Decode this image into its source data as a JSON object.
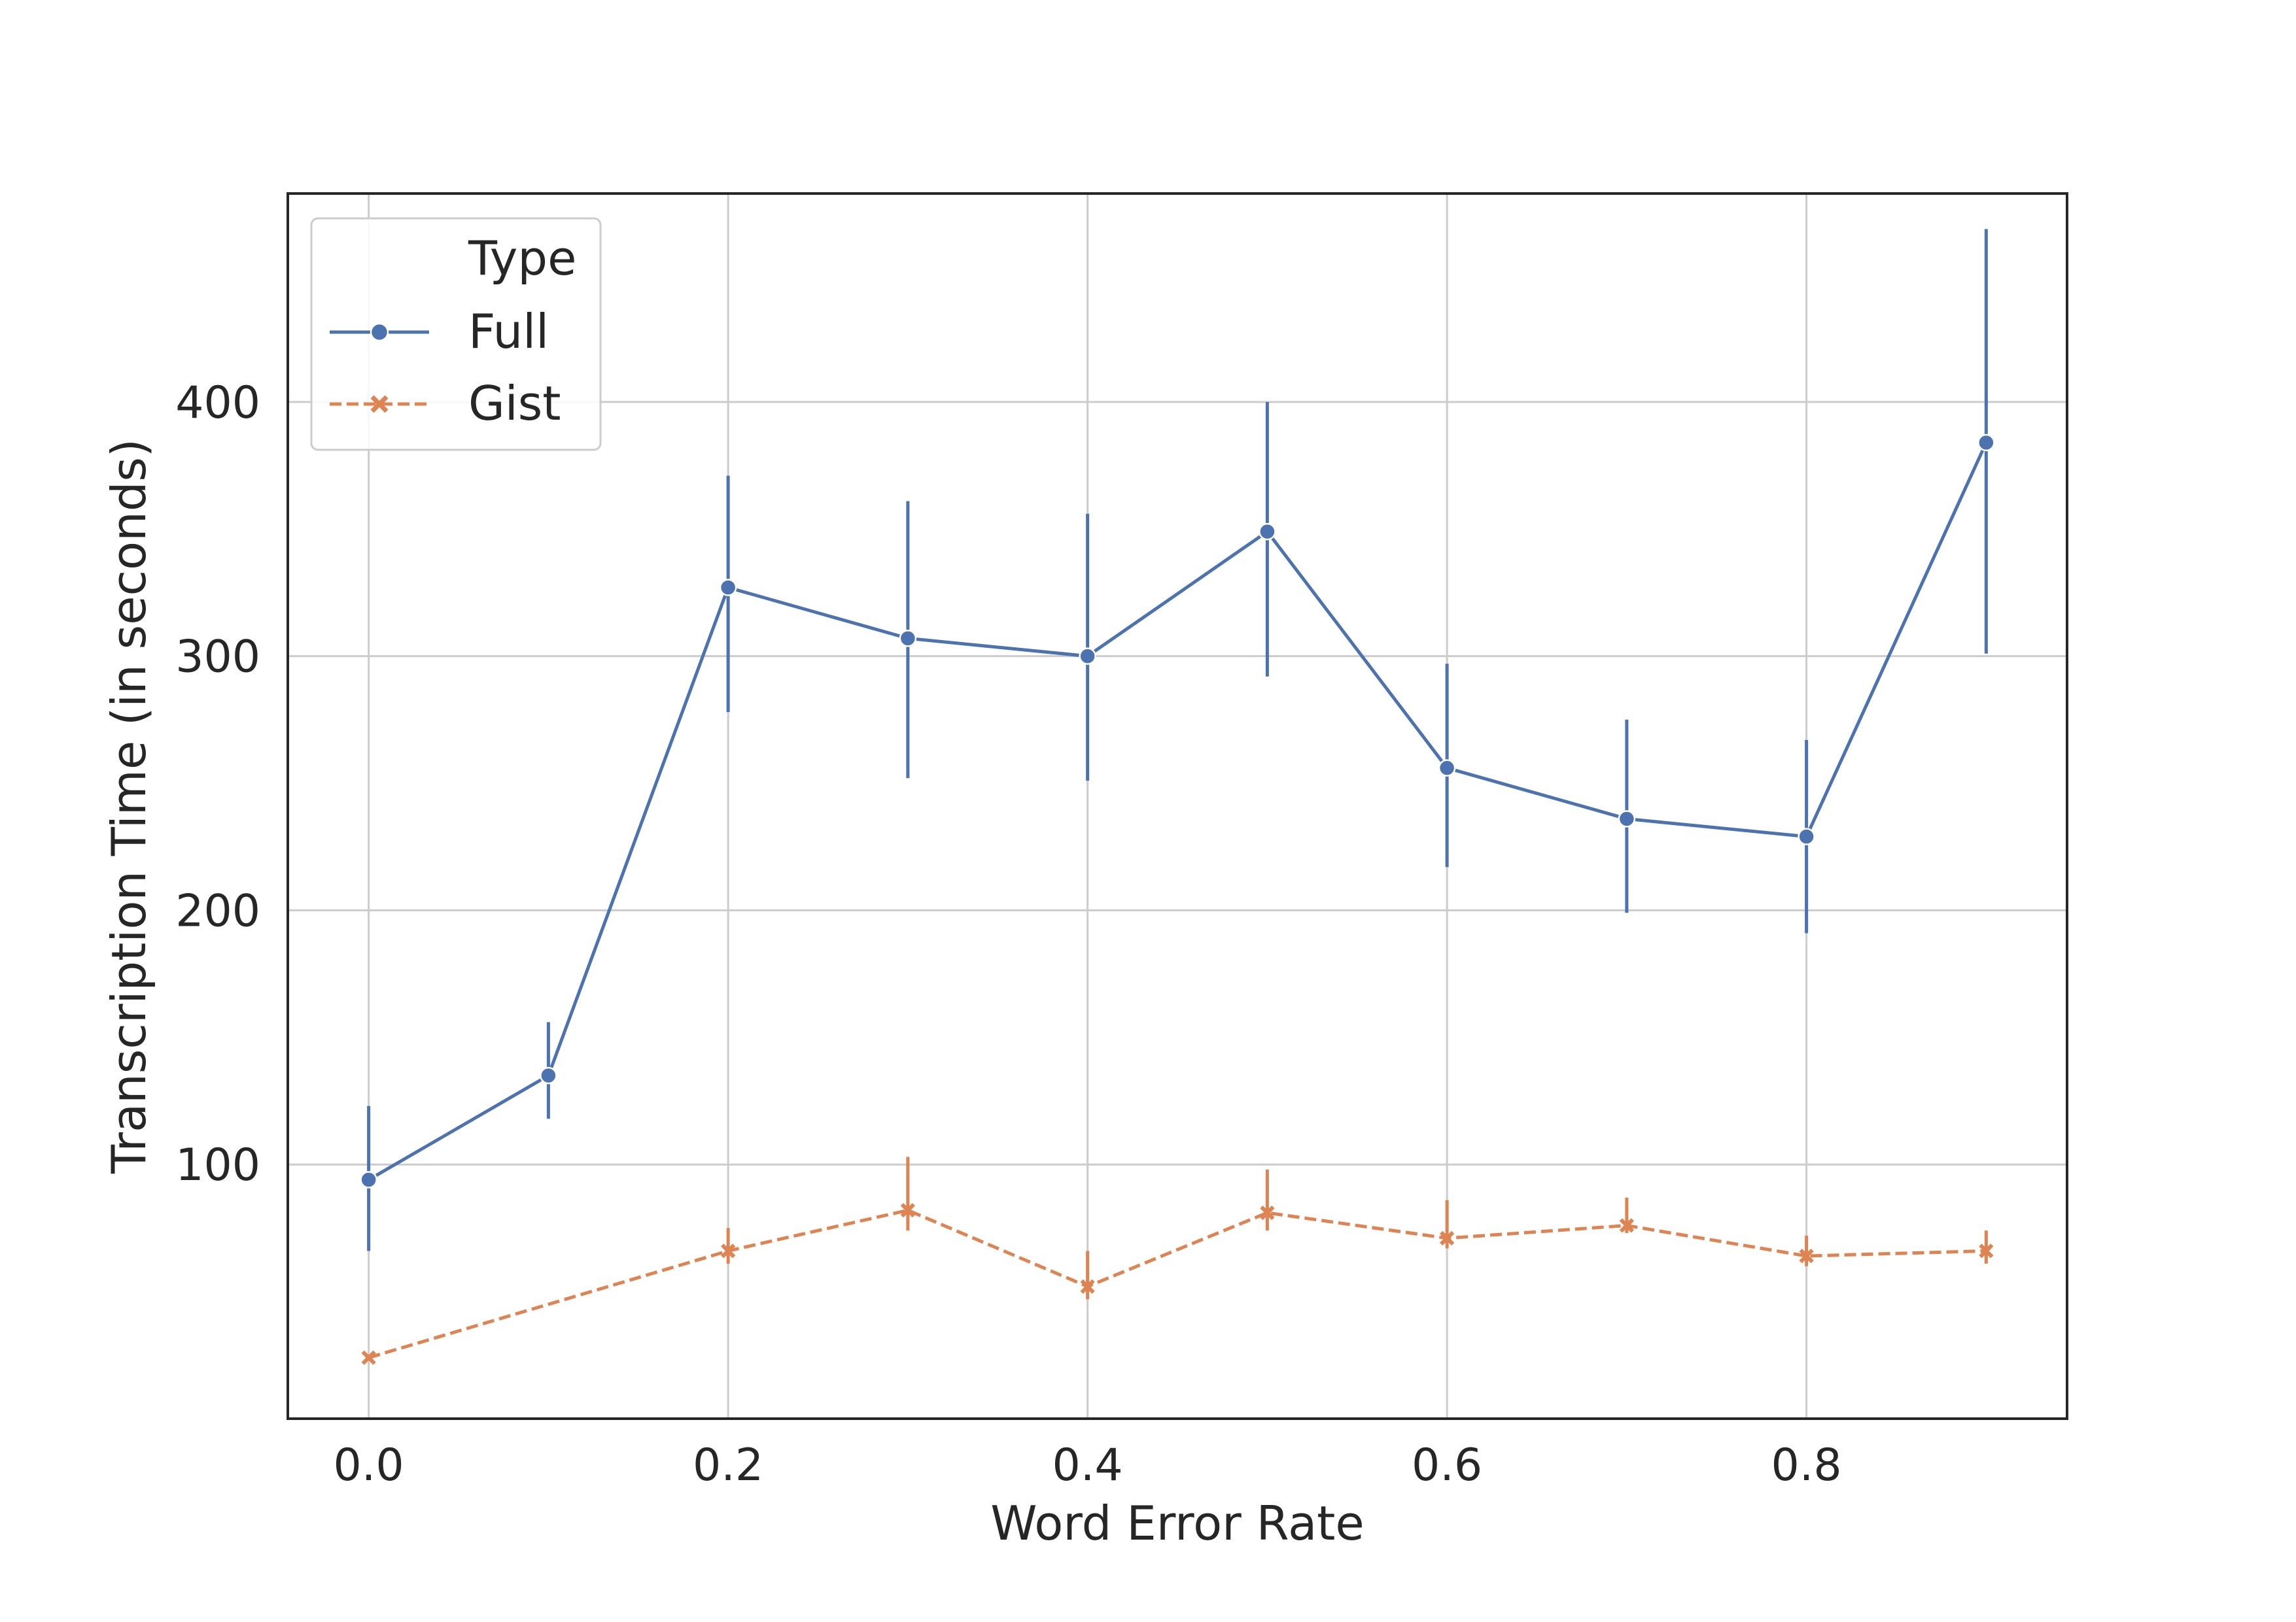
{
  "chart_data": {
    "type": "line",
    "title": "",
    "xlabel": "Word Error Rate",
    "ylabel": "Transcription Time (in seconds)",
    "xlim": [
      -0.045,
      0.945
    ],
    "ylim": [
      0,
      482
    ],
    "xticks": [
      "0.0",
      "0.2",
      "0.4",
      "0.6",
      "0.8"
    ],
    "xtick_values": [
      0.0,
      0.2,
      0.4,
      0.6,
      0.8
    ],
    "yticks": [
      "100",
      "200",
      "300",
      "400"
    ],
    "ytick_values": [
      100,
      200,
      300,
      400
    ],
    "grid": true,
    "legend": {
      "title": "Type",
      "placement": "top-left"
    },
    "x": [
      0.0,
      0.1,
      0.2,
      0.3,
      0.4,
      0.5,
      0.6,
      0.7,
      0.8,
      0.9
    ],
    "series": [
      {
        "name": "Full",
        "color": "#4c72b0",
        "marker": "circle",
        "linestyle": "solid",
        "values": [
          94,
          135,
          327,
          307,
          300,
          349,
          256,
          236,
          229,
          384
        ],
        "err_low": [
          66,
          118,
          278,
          252,
          251,
          292,
          217,
          199,
          191,
          301
        ],
        "err_high": [
          123,
          156,
          371,
          361,
          356,
          400,
          297,
          275,
          267,
          468
        ]
      },
      {
        "name": "Gist",
        "color": "#dd8452",
        "marker": "x",
        "linestyle": "dashed",
        "values": [
          24,
          null,
          66,
          82,
          52,
          81,
          71,
          76,
          64,
          66
        ],
        "err_low": [
          null,
          null,
          61,
          74,
          47,
          74,
          67,
          73,
          60,
          61
        ],
        "err_high": [
          null,
          null,
          75,
          103,
          66,
          98,
          86,
          87,
          72,
          74
        ]
      }
    ]
  }
}
